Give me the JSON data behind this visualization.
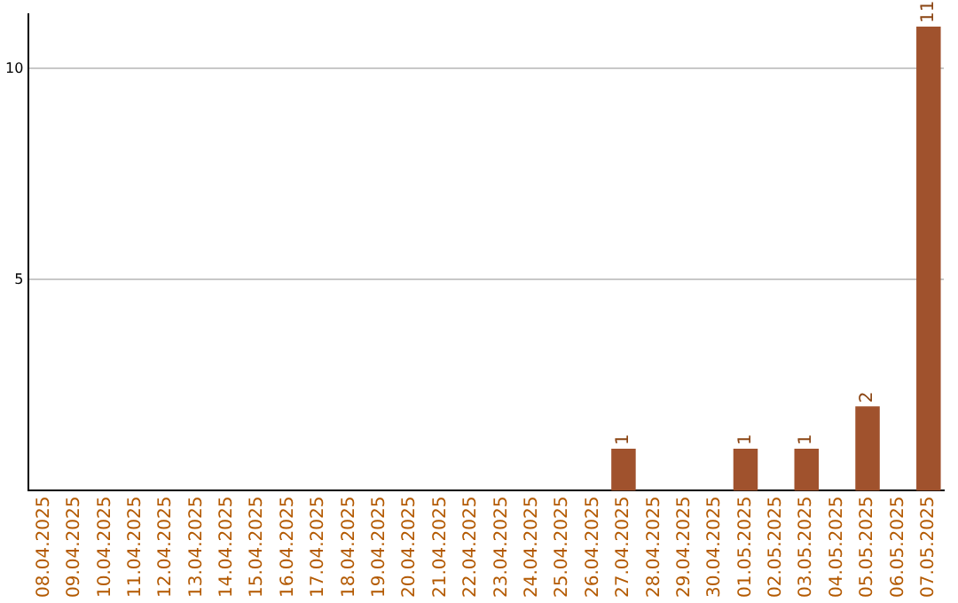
{
  "chart_data": {
    "type": "bar",
    "categories": [
      "08.04.2025",
      "09.04.2025",
      "10.04.2025",
      "11.04.2025",
      "12.04.2025",
      "13.04.2025",
      "14.04.2025",
      "15.04.2025",
      "16.04.2025",
      "17.04.2025",
      "18.04.2025",
      "19.04.2025",
      "20.04.2025",
      "21.04.2025",
      "22.04.2025",
      "23.04.2025",
      "24.04.2025",
      "25.04.2025",
      "26.04.2025",
      "27.04.2025",
      "28.04.2025",
      "29.04.2025",
      "30.04.2025",
      "01.05.2025",
      "02.05.2025",
      "03.05.2025",
      "04.05.2025",
      "05.05.2025",
      "06.05.2025",
      "07.05.2025"
    ],
    "values": [
      0,
      0,
      0,
      0,
      0,
      0,
      0,
      0,
      0,
      0,
      0,
      0,
      0,
      0,
      0,
      0,
      0,
      0,
      0,
      1,
      0,
      0,
      0,
      1,
      0,
      1,
      0,
      2,
      0,
      11
    ],
    "value_labels": [
      null,
      null,
      null,
      null,
      null,
      null,
      null,
      null,
      null,
      null,
      null,
      null,
      null,
      null,
      null,
      null,
      null,
      null,
      null,
      "1",
      null,
      null,
      null,
      "1",
      null,
      "1",
      null,
      "2",
      null,
      "11"
    ],
    "color": "#a0522d",
    "ylim": [
      0,
      11.3
    ],
    "yticks": [
      5,
      10
    ],
    "grid": "y",
    "legend": false
  }
}
